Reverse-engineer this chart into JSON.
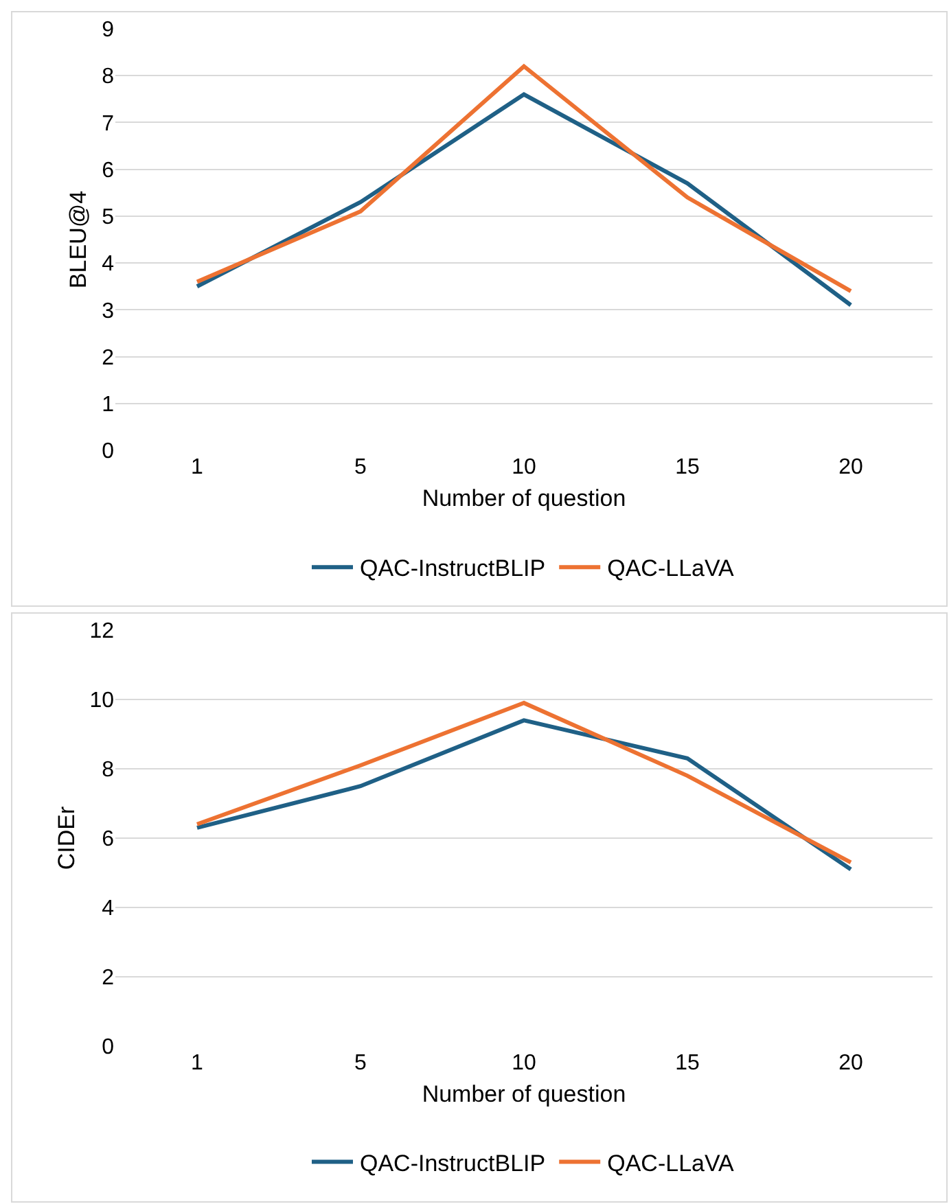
{
  "chart_data": [
    {
      "type": "line",
      "xlabel": "Number of question",
      "ylabel": "BLEU@4",
      "categories": [
        "1",
        "5",
        "10",
        "15",
        "20"
      ],
      "ylim": [
        0,
        9
      ],
      "yticks": [
        0,
        1,
        2,
        3,
        4,
        5,
        6,
        7,
        8,
        9
      ],
      "grid": "y",
      "legend": "bottom",
      "marker": "none",
      "line_style": "solid",
      "series": [
        {
          "name": "QAC-InstructBLIP",
          "color": "#1f6086",
          "values": [
            3.5,
            5.3,
            7.6,
            5.7,
            3.1
          ]
        },
        {
          "name": "QAC-LLaVA",
          "color": "#ed7232",
          "values": [
            3.6,
            5.1,
            8.2,
            5.4,
            3.4
          ]
        }
      ]
    },
    {
      "type": "line",
      "xlabel": "Number of question",
      "ylabel": "CIDEr",
      "categories": [
        "1",
        "5",
        "10",
        "15",
        "20"
      ],
      "ylim": [
        0,
        12
      ],
      "yticks": [
        0,
        2,
        4,
        6,
        8,
        10,
        12
      ],
      "grid": "y",
      "legend": "bottom",
      "marker": "none",
      "line_style": "solid",
      "series": [
        {
          "name": "QAC-InstructBLIP",
          "color": "#1f6086",
          "values": [
            6.3,
            7.5,
            9.4,
            8.3,
            5.1
          ]
        },
        {
          "name": "QAC-LLaVA",
          "color": "#ed7232",
          "values": [
            6.4,
            8.1,
            9.9,
            7.8,
            5.3
          ]
        }
      ]
    }
  ]
}
